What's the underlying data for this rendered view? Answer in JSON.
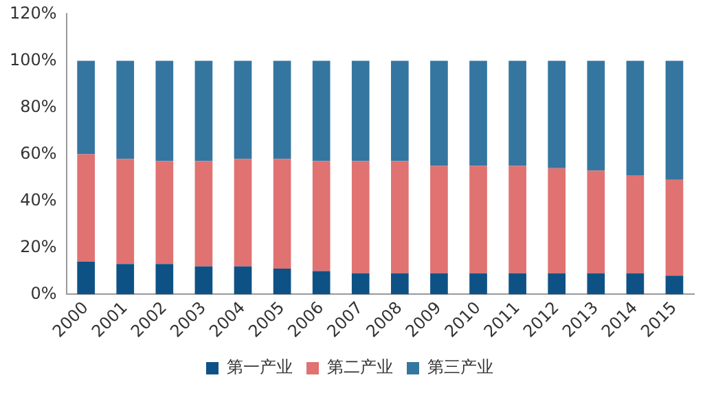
{
  "chart_data": {
    "type": "bar",
    "stacked": true,
    "categories": [
      "2000",
      "2001",
      "2002",
      "2003",
      "2004",
      "2005",
      "2006",
      "2007",
      "2008",
      "2009",
      "2010",
      "2011",
      "2012",
      "2013",
      "2014",
      "2015"
    ],
    "series": [
      {
        "name": "第一产业",
        "color": "#0e5285",
        "values": [
          14,
          13,
          13,
          12,
          12,
          11,
          10,
          9,
          9,
          9,
          9,
          9,
          9,
          9,
          9,
          8
        ]
      },
      {
        "name": "第二产业",
        "color": "#e07272",
        "values": [
          46,
          45,
          44,
          45,
          46,
          47,
          47,
          48,
          48,
          46,
          46,
          46,
          45,
          44,
          42,
          41
        ]
      },
      {
        "name": "第三产业",
        "color": "#3476a0",
        "values": [
          40,
          42,
          43,
          43,
          42,
          42,
          43,
          43,
          43,
          45,
          45,
          45,
          46,
          47,
          49,
          51
        ]
      }
    ],
    "ylim": [
      0,
      120
    ],
    "yticks": [
      {
        "value": 0,
        "label": "0%"
      },
      {
        "value": 20,
        "label": "20%"
      },
      {
        "value": 40,
        "label": "40%"
      },
      {
        "value": 60,
        "label": "60%"
      },
      {
        "value": 80,
        "label": "80%"
      },
      {
        "value": 100,
        "label": "100%"
      },
      {
        "value": 120,
        "label": "120%"
      }
    ],
    "grid": false,
    "legend": "bottom"
  }
}
